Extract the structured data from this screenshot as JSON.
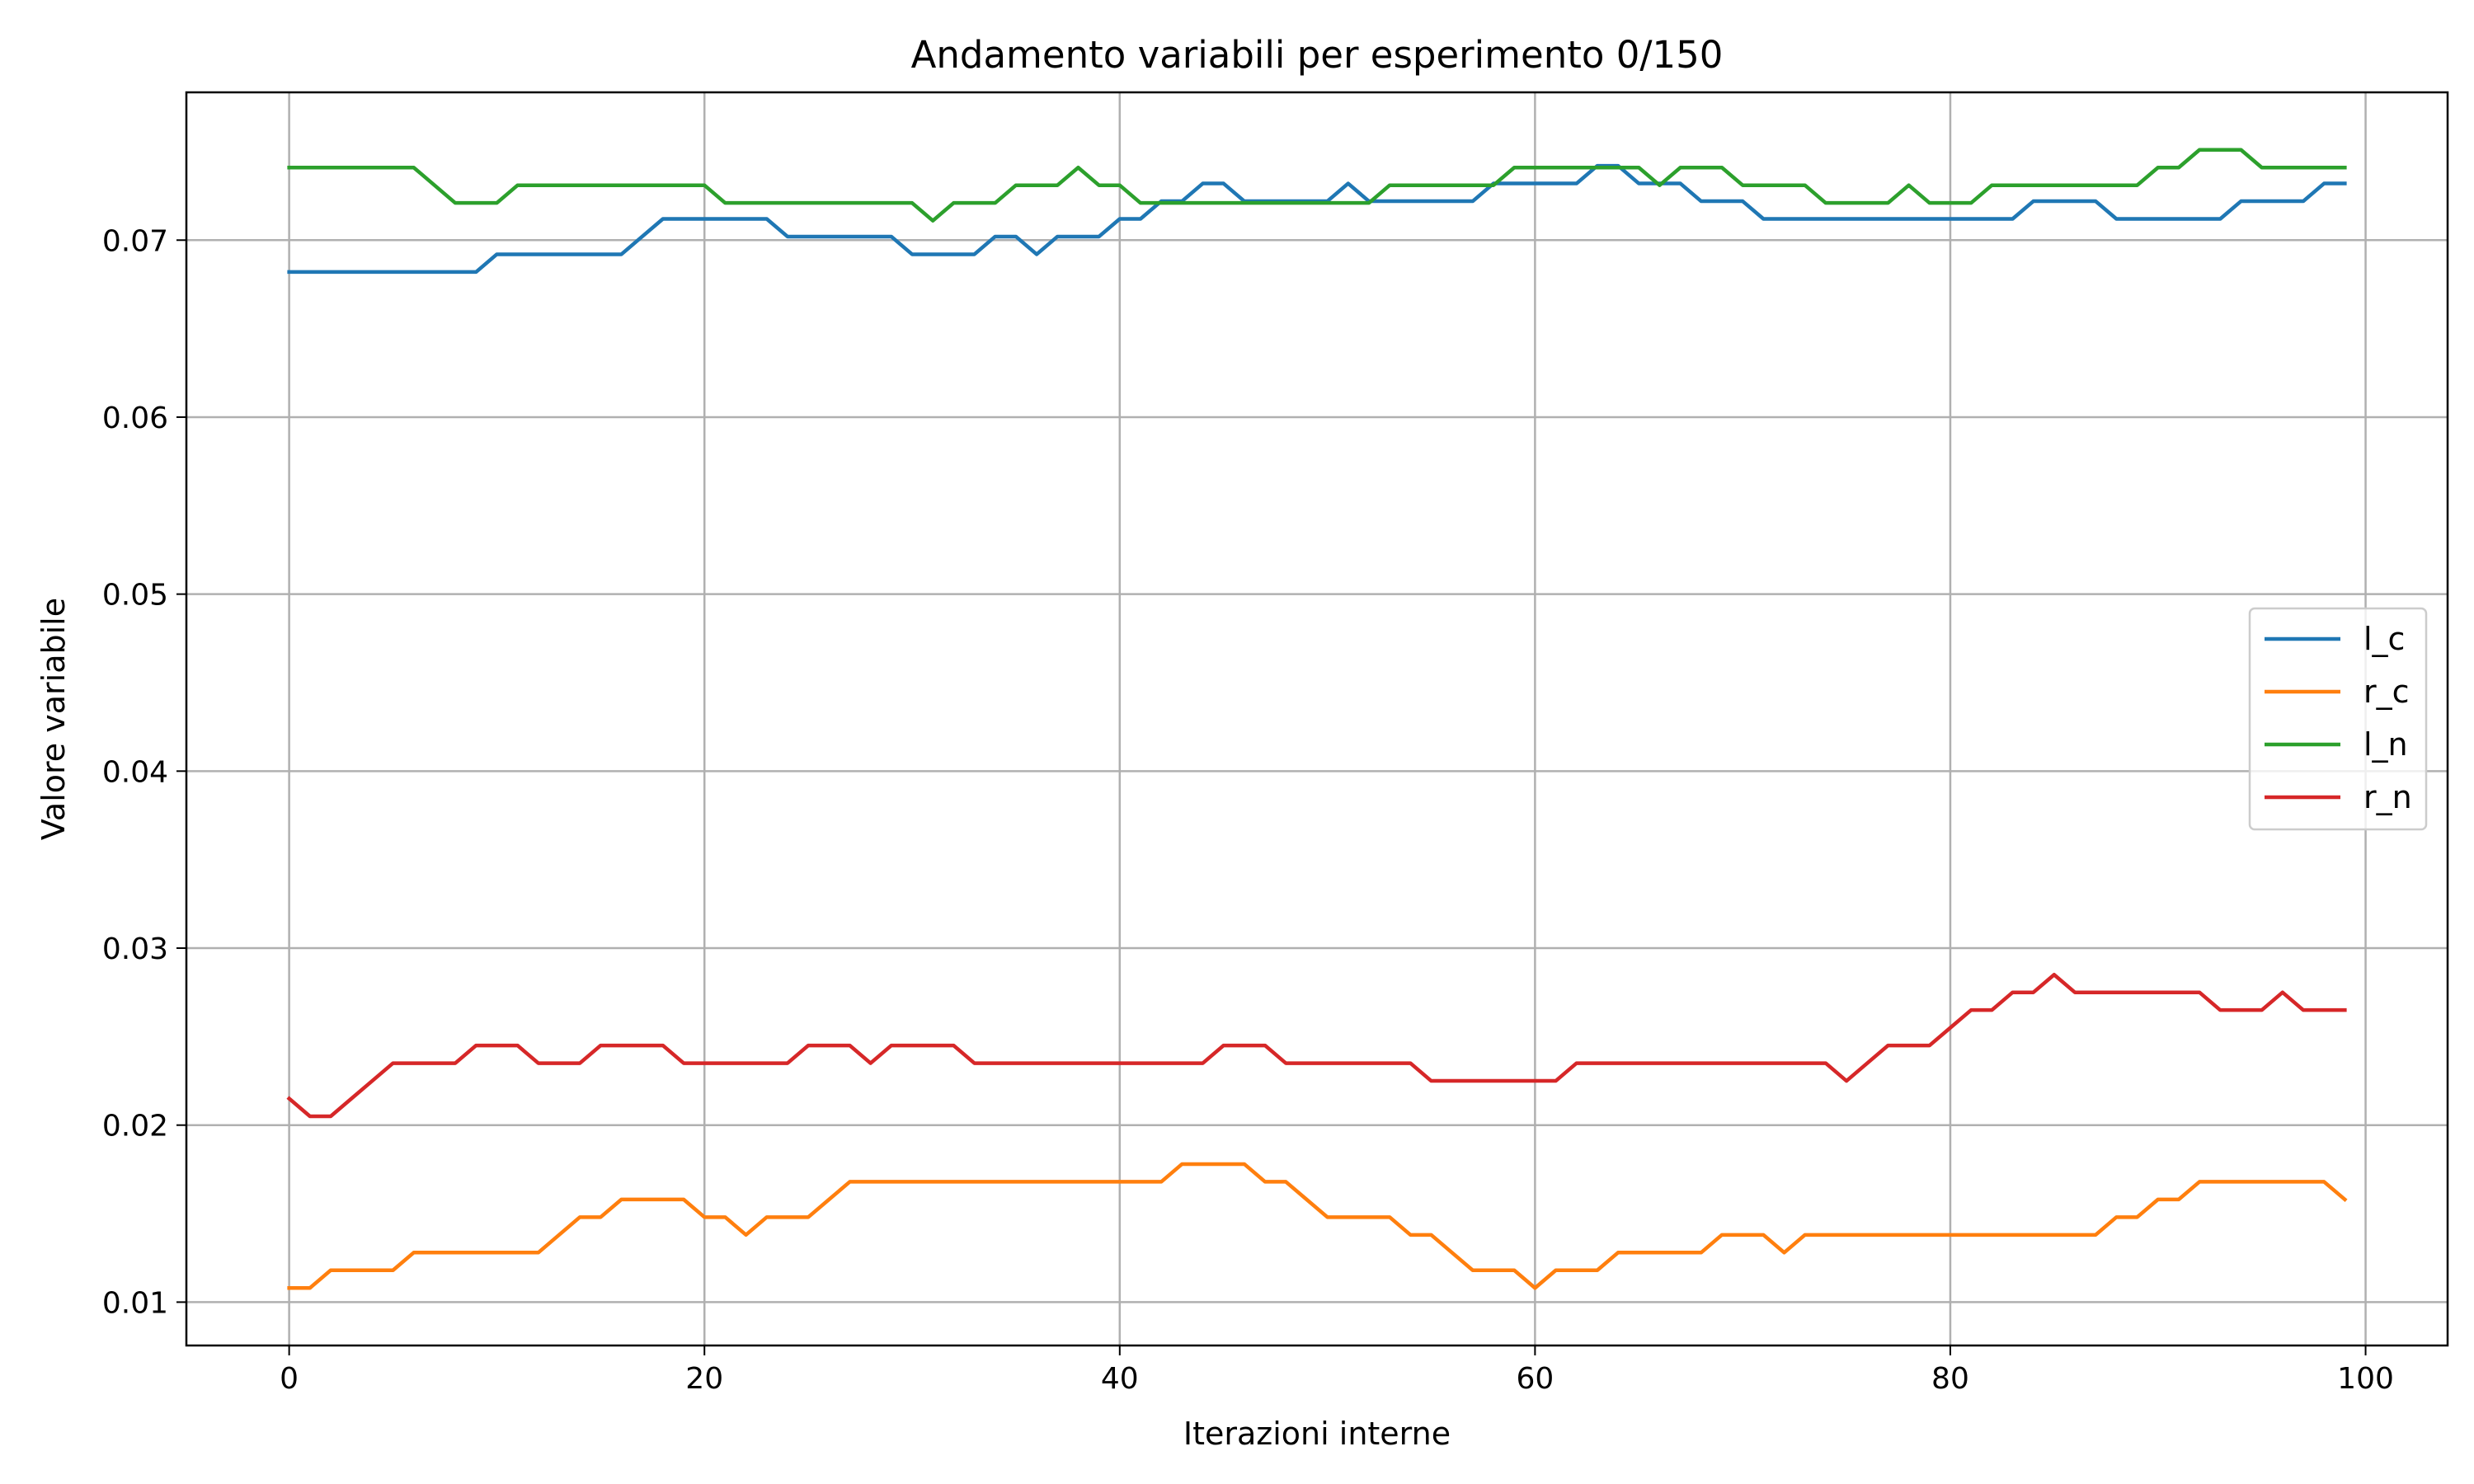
{
  "chart_data": {
    "type": "line",
    "title": "Andamento variabili per esperimento 0/150",
    "xlabel": "Iterazioni interne",
    "ylabel": "Valore variabile",
    "xlim": [
      -4.95,
      103.95
    ],
    "ylim": [
      0.00755,
      0.07835
    ],
    "x_ticks": [
      0,
      20,
      40,
      60,
      80,
      100
    ],
    "y_ticks": [
      0.01,
      0.02,
      0.03,
      0.04,
      0.05,
      0.06,
      0.07
    ],
    "x_tick_labels": [
      "0",
      "20",
      "40",
      "60",
      "80",
      "100"
    ],
    "y_tick_labels": [
      "0.01",
      "0.02",
      "0.03",
      "0.04",
      "0.05",
      "0.06",
      "0.07"
    ],
    "grid": true,
    "legend_position": "center-right",
    "x": [
      0,
      1,
      2,
      3,
      4,
      5,
      6,
      7,
      8,
      9,
      10,
      11,
      12,
      13,
      14,
      15,
      16,
      17,
      18,
      19,
      20,
      21,
      22,
      23,
      24,
      25,
      26,
      27,
      28,
      29,
      30,
      31,
      32,
      33,
      34,
      35,
      36,
      37,
      38,
      39,
      40,
      41,
      42,
      43,
      44,
      45,
      46,
      47,
      48,
      49,
      50,
      51,
      52,
      53,
      54,
      55,
      56,
      57,
      58,
      59,
      60,
      61,
      62,
      63,
      64,
      65,
      66,
      67,
      68,
      69,
      70,
      71,
      72,
      73,
      74,
      75,
      76,
      77,
      78,
      79,
      80,
      81,
      82,
      83,
      84,
      85,
      86,
      87,
      88,
      89,
      90,
      91,
      92,
      93,
      94,
      95,
      96,
      97,
      98,
      99
    ],
    "series": [
      {
        "name": "l_c",
        "color": "#1f77b4",
        "values": [
          0.0682,
          0.0682,
          0.0682,
          0.0682,
          0.0682,
          0.0682,
          0.0682,
          0.0682,
          0.0682,
          0.0682,
          0.0692,
          0.0692,
          0.0692,
          0.0692,
          0.0692,
          0.0692,
          0.0692,
          0.0702,
          0.0712,
          0.0712,
          0.0712,
          0.0712,
          0.0712,
          0.0712,
          0.0702,
          0.0702,
          0.0702,
          0.0702,
          0.0702,
          0.0702,
          0.0692,
          0.0692,
          0.0692,
          0.0692,
          0.0702,
          0.0702,
          0.0692,
          0.0702,
          0.0702,
          0.0702,
          0.0712,
          0.0712,
          0.0722,
          0.0722,
          0.0732,
          0.0732,
          0.0722,
          0.0722,
          0.0722,
          0.0722,
          0.0722,
          0.0732,
          0.0722,
          0.0722,
          0.0722,
          0.0722,
          0.0722,
          0.0722,
          0.0732,
          0.0732,
          0.0732,
          0.0732,
          0.0732,
          0.0742,
          0.0742,
          0.0732,
          0.0732,
          0.0732,
          0.0722,
          0.0722,
          0.0722,
          0.0712,
          0.0712,
          0.0712,
          0.0712,
          0.0712,
          0.0712,
          0.0712,
          0.0712,
          0.0712,
          0.0712,
          0.0712,
          0.0712,
          0.0712,
          0.0722,
          0.0722,
          0.0722,
          0.0722,
          0.0712,
          0.0712,
          0.0712,
          0.0712,
          0.0712,
          0.0712,
          0.0722,
          0.0722,
          0.0722,
          0.0722,
          0.0732,
          0.0732
        ]
      },
      {
        "name": "r_c",
        "color": "#ff7f0e",
        "values": [
          0.0108,
          0.0108,
          0.0118,
          0.0118,
          0.0118,
          0.0118,
          0.0128,
          0.0128,
          0.0128,
          0.0128,
          0.0128,
          0.0128,
          0.0128,
          0.0138,
          0.0148,
          0.0148,
          0.0158,
          0.0158,
          0.0158,
          0.0158,
          0.0148,
          0.0148,
          0.0138,
          0.0148,
          0.0148,
          0.0148,
          0.0158,
          0.0168,
          0.0168,
          0.0168,
          0.0168,
          0.0168,
          0.0168,
          0.0168,
          0.0168,
          0.0168,
          0.0168,
          0.0168,
          0.0168,
          0.0168,
          0.0168,
          0.0168,
          0.0168,
          0.0178,
          0.0178,
          0.0178,
          0.0178,
          0.0168,
          0.0168,
          0.0158,
          0.0148,
          0.0148,
          0.0148,
          0.0148,
          0.0138,
          0.0138,
          0.0128,
          0.0118,
          0.0118,
          0.0118,
          0.0108,
          0.0118,
          0.0118,
          0.0118,
          0.0128,
          0.0128,
          0.0128,
          0.0128,
          0.0128,
          0.0138,
          0.0138,
          0.0138,
          0.0128,
          0.0138,
          0.0138,
          0.0138,
          0.0138,
          0.0138,
          0.0138,
          0.0138,
          0.0138,
          0.0138,
          0.0138,
          0.0138,
          0.0138,
          0.0138,
          0.0138,
          0.0138,
          0.0148,
          0.0148,
          0.0158,
          0.0158,
          0.0168,
          0.0168,
          0.0168,
          0.0168,
          0.0168,
          0.0168,
          0.0168,
          0.0158
        ]
      },
      {
        "name": "l_n",
        "color": "#2ca02c",
        "values": [
          0.0741,
          0.0741,
          0.0741,
          0.0741,
          0.0741,
          0.0741,
          0.0741,
          0.0731,
          0.0721,
          0.0721,
          0.0721,
          0.0731,
          0.0731,
          0.0731,
          0.0731,
          0.0731,
          0.0731,
          0.0731,
          0.0731,
          0.0731,
          0.0731,
          0.0721,
          0.0721,
          0.0721,
          0.0721,
          0.0721,
          0.0721,
          0.0721,
          0.0721,
          0.0721,
          0.0721,
          0.0711,
          0.0721,
          0.0721,
          0.0721,
          0.0731,
          0.0731,
          0.0731,
          0.0741,
          0.0731,
          0.0731,
          0.0721,
          0.0721,
          0.0721,
          0.0721,
          0.0721,
          0.0721,
          0.0721,
          0.0721,
          0.0721,
          0.0721,
          0.0721,
          0.0721,
          0.0731,
          0.0731,
          0.0731,
          0.0731,
          0.0731,
          0.0731,
          0.0741,
          0.0741,
          0.0741,
          0.0741,
          0.0741,
          0.0741,
          0.0741,
          0.0731,
          0.0741,
          0.0741,
          0.0741,
          0.0731,
          0.0731,
          0.0731,
          0.0731,
          0.0721,
          0.0721,
          0.0721,
          0.0721,
          0.0731,
          0.0721,
          0.0721,
          0.0721,
          0.0731,
          0.0731,
          0.0731,
          0.0731,
          0.0731,
          0.0731,
          0.0731,
          0.0731,
          0.0741,
          0.0741,
          0.0751,
          0.0751,
          0.0751,
          0.0741,
          0.0741,
          0.0741,
          0.0741,
          0.0741
        ]
      },
      {
        "name": "r_n",
        "color": "#d62728",
        "values": [
          0.0215,
          0.0205,
          0.0205,
          0.0215,
          0.0225,
          0.0235,
          0.0235,
          0.0235,
          0.0235,
          0.0245,
          0.0245,
          0.0245,
          0.0235,
          0.0235,
          0.0235,
          0.0245,
          0.0245,
          0.0245,
          0.0245,
          0.0235,
          0.0235,
          0.0235,
          0.0235,
          0.0235,
          0.0235,
          0.0245,
          0.0245,
          0.0245,
          0.0235,
          0.0245,
          0.0245,
          0.0245,
          0.0245,
          0.0235,
          0.0235,
          0.0235,
          0.0235,
          0.0235,
          0.0235,
          0.0235,
          0.0235,
          0.0235,
          0.0235,
          0.0235,
          0.0235,
          0.0245,
          0.0245,
          0.0245,
          0.0235,
          0.0235,
          0.0235,
          0.0235,
          0.0235,
          0.0235,
          0.0235,
          0.0225,
          0.0225,
          0.0225,
          0.0225,
          0.0225,
          0.0225,
          0.0225,
          0.0235,
          0.0235,
          0.0235,
          0.0235,
          0.0235,
          0.0235,
          0.0235,
          0.0235,
          0.0235,
          0.0235,
          0.0235,
          0.0235,
          0.0235,
          0.0225,
          0.0235,
          0.0245,
          0.0245,
          0.0245,
          0.0255,
          0.0265,
          0.0265,
          0.0275,
          0.0275,
          0.0285,
          0.0275,
          0.0275,
          0.0275,
          0.0275,
          0.0275,
          0.0275,
          0.0275,
          0.0265,
          0.0265,
          0.0265,
          0.0275,
          0.0265,
          0.0265,
          0.0265
        ]
      }
    ]
  }
}
